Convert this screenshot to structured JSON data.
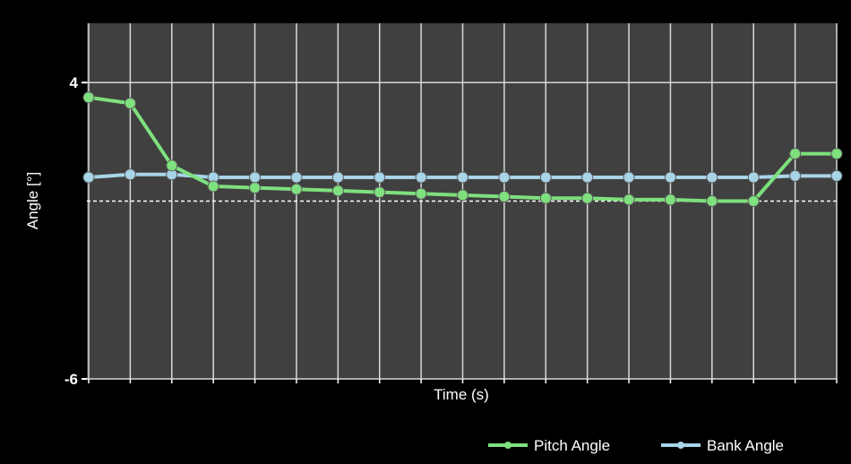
{
  "chart_data": {
    "type": "line",
    "xlabel": "Time (s)",
    "ylabel": "Angle [°]",
    "ylim": [
      -6,
      6
    ],
    "yticks": [
      {
        "value": 4,
        "label": "4"
      },
      {
        "value": -6,
        "label": "-6"
      }
    ],
    "x": [
      0,
      1,
      2,
      3,
      4,
      5,
      6,
      7,
      8,
      9,
      10,
      11,
      12,
      13,
      14,
      15,
      16,
      17,
      18
    ],
    "reference_line": 0,
    "grid": true,
    "legend_position": "bottom-right",
    "series": [
      {
        "name": "Pitch Angle",
        "color": "#7ee07e",
        "values": [
          3.5,
          3.3,
          1.2,
          0.5,
          0.45,
          0.4,
          0.35,
          0.3,
          0.25,
          0.2,
          0.15,
          0.1,
          0.1,
          0.05,
          0.05,
          0.0,
          0.0,
          1.6,
          1.6
        ]
      },
      {
        "name": "Bank Angle",
        "color": "#a8d4e8",
        "values": [
          0.8,
          0.9,
          0.9,
          0.8,
          0.8,
          0.8,
          0.8,
          0.8,
          0.8,
          0.8,
          0.8,
          0.8,
          0.8,
          0.8,
          0.8,
          0.8,
          0.8,
          0.85,
          0.85
        ]
      }
    ]
  }
}
